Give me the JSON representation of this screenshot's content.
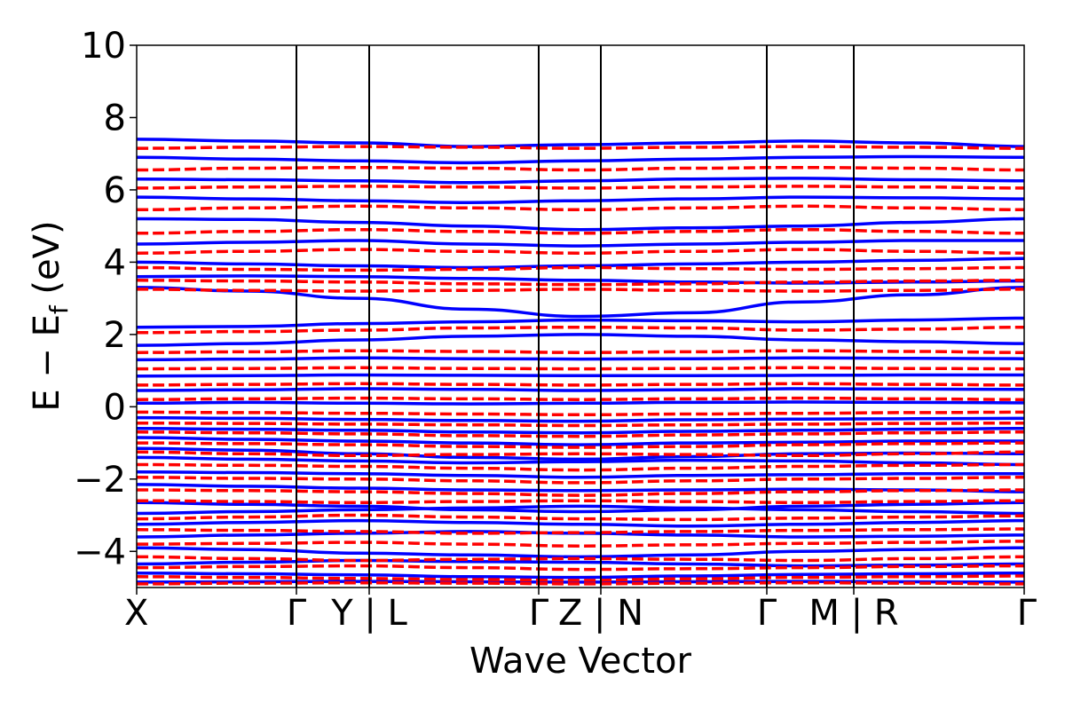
{
  "chart_data": {
    "type": "line",
    "title": "",
    "xlabel": "Wave Vector",
    "ylabel": "E − E",
    "ylabel_sub": "f",
    "ylabel_unit": " (eV)",
    "ylim": [
      -5,
      10
    ],
    "yticks": [
      -4,
      -2,
      0,
      2,
      4,
      6,
      8,
      10
    ],
    "ytick_labels": [
      "−4",
      "−2",
      "0",
      "2",
      "4",
      "6",
      "8",
      "10"
    ],
    "kpath_ticks": [
      {
        "k": 0.0,
        "label": "X"
      },
      {
        "k": 0.18,
        "label": "Γ"
      },
      {
        "k": 0.262,
        "label": "Y | L"
      },
      {
        "k": 0.453,
        "label": "Γ"
      },
      {
        "k": 0.523,
        "label": "Z | N"
      },
      {
        "k": 0.71,
        "label": "Γ"
      },
      {
        "k": 0.808,
        "label": "M | R"
      },
      {
        "k": 1.0,
        "label": "Γ"
      }
    ],
    "colors": {
      "series_a": "#0000ff",
      "series_b": "#ff0000",
      "axis": "#000000"
    },
    "series": [
      {
        "style": "solid",
        "color": "#0000ff",
        "bands": [
          {
            "y": [
              -4.85,
              -4.84,
              -4.83,
              -4.84,
              -4.85,
              -4.84,
              -4.83,
              -4.84,
              -4.85
            ]
          },
          {
            "y": [
              -4.6,
              -4.62,
              -4.65,
              -4.7,
              -4.72,
              -4.68,
              -4.64,
              -4.62,
              -4.6
            ]
          },
          {
            "y": [
              -4.35,
              -4.3,
              -4.25,
              -4.28,
              -4.3,
              -4.35,
              -4.4,
              -4.38,
              -4.35
            ]
          },
          {
            "y": [
              -3.9,
              -3.95,
              -4.05,
              -4.1,
              -4.15,
              -4.1,
              -4.0,
              -3.95,
              -3.9
            ]
          },
          {
            "y": [
              -3.6,
              -3.55,
              -3.5,
              -3.45,
              -3.5,
              -3.55,
              -3.6,
              -3.58,
              -3.55
            ]
          },
          {
            "y": [
              -3.25,
              -3.2,
              -3.15,
              -3.2,
              -3.25,
              -3.3,
              -3.25,
              -3.2,
              -3.15
            ]
          },
          {
            "y": [
              -2.95,
              -2.9,
              -2.85,
              -2.8,
              -2.75,
              -2.8,
              -2.85,
              -2.9,
              -2.95
            ]
          },
          {
            "y": [
              -2.65,
              -2.7,
              -2.75,
              -2.85,
              -2.9,
              -2.85,
              -2.75,
              -2.7,
              -2.65
            ]
          },
          {
            "y": [
              -2.15,
              -2.2,
              -2.25,
              -2.3,
              -2.32,
              -2.3,
              -2.28,
              -2.3,
              -2.35
            ]
          },
          {
            "y": [
              -1.8,
              -1.82,
              -1.85,
              -1.9,
              -1.95,
              -1.9,
              -1.88,
              -1.85,
              -1.85
            ]
          },
          {
            "y": [
              -1.4,
              -1.45,
              -1.5,
              -1.55,
              -1.52,
              -1.48,
              -1.5,
              -1.55,
              -1.6
            ]
          },
          {
            "y": [
              -1.15,
              -1.2,
              -1.3,
              -1.4,
              -1.45,
              -1.38,
              -1.3,
              -1.28,
              -1.3
            ]
          },
          {
            "y": [
              -0.85,
              -0.9,
              -0.95,
              -1.0,
              -1.05,
              -1.0,
              -0.98,
              -0.95,
              -0.95
            ]
          },
          {
            "y": [
              -0.6,
              -0.62,
              -0.65,
              -0.7,
              -0.72,
              -0.68,
              -0.65,
              -0.62,
              -0.6
            ]
          },
          {
            "y": [
              -0.3,
              -0.32,
              -0.35,
              -0.38,
              -0.4,
              -0.36,
              -0.34,
              -0.33,
              -0.32
            ]
          },
          {
            "y": [
              0.1,
              0.12,
              0.1,
              0.08,
              0.1,
              0.12,
              0.13,
              0.12,
              0.11
            ]
          },
          {
            "y": [
              0.45,
              0.47,
              0.5,
              0.48,
              0.45,
              0.47,
              0.5,
              0.49,
              0.48
            ]
          },
          {
            "y": [
              0.85,
              0.86,
              0.88,
              0.87,
              0.86,
              0.86,
              0.87,
              0.88,
              0.88
            ]
          },
          {
            "y": [
              1.3,
              1.32,
              1.35,
              1.33,
              1.32,
              1.33,
              1.35,
              1.34,
              1.33
            ]
          },
          {
            "y": [
              1.7,
              1.75,
              1.85,
              1.95,
              2.0,
              1.95,
              1.85,
              1.8,
              1.75
            ]
          },
          {
            "y": [
              2.2,
              2.22,
              2.3,
              2.35,
              2.4,
              2.38,
              2.35,
              2.4,
              2.45
            ]
          },
          {
            "y": [
              3.3,
              3.2,
              3.0,
              2.7,
              2.5,
              2.6,
              2.9,
              3.1,
              3.3
            ]
          },
          {
            "y": [
              3.6,
              3.62,
              3.6,
              3.55,
              3.5,
              3.45,
              3.42,
              3.45,
              3.48
            ]
          },
          {
            "y": [
              4.0,
              3.95,
              3.9,
              3.85,
              3.9,
              3.95,
              4.0,
              4.05,
              4.1
            ]
          },
          {
            "y": [
              4.5,
              4.55,
              4.6,
              4.5,
              4.45,
              4.5,
              4.55,
              4.6,
              4.6
            ]
          },
          {
            "y": [
              5.2,
              5.18,
              5.1,
              5.0,
              4.9,
              4.95,
              5.0,
              5.1,
              5.2
            ]
          },
          {
            "y": [
              5.8,
              5.75,
              5.7,
              5.65,
              5.7,
              5.75,
              5.8,
              5.78,
              5.75
            ]
          },
          {
            "y": [
              6.3,
              6.28,
              6.25,
              6.2,
              6.25,
              6.3,
              6.32,
              6.28,
              6.25
            ]
          },
          {
            "y": [
              6.9,
              6.85,
              6.8,
              6.75,
              6.8,
              6.85,
              6.9,
              6.92,
              6.9
            ]
          },
          {
            "y": [
              7.4,
              7.35,
              7.3,
              7.2,
              7.25,
              7.3,
              7.35,
              7.3,
              7.2
            ]
          }
        ]
      },
      {
        "style": "dashed",
        "color": "#ff0000",
        "bands": [
          {
            "y": [
              -4.9,
              -4.88,
              -4.87,
              -4.88,
              -4.9,
              -4.88,
              -4.87,
              -4.88,
              -4.9
            ]
          },
          {
            "y": [
              -4.7,
              -4.72,
              -4.75,
              -4.78,
              -4.8,
              -4.76,
              -4.72,
              -4.7,
              -4.68
            ]
          },
          {
            "y": [
              -4.45,
              -4.42,
              -4.4,
              -4.45,
              -4.5,
              -4.48,
              -4.45,
              -4.42,
              -4.4
            ]
          },
          {
            "y": [
              -4.15,
              -4.2,
              -4.25,
              -4.22,
              -4.2,
              -4.22,
              -4.25,
              -4.2,
              -4.15
            ]
          },
          {
            "y": [
              -3.8,
              -3.78,
              -3.75,
              -3.8,
              -3.85,
              -3.82,
              -3.78,
              -3.75,
              -3.72
            ]
          },
          {
            "y": [
              -3.4,
              -3.42,
              -3.45,
              -3.5,
              -3.48,
              -3.45,
              -3.42,
              -3.4,
              -3.38
            ]
          },
          {
            "y": [
              -3.1,
              -3.05,
              -3.0,
              -3.05,
              -3.1,
              -3.12,
              -3.08,
              -3.05,
              -3.02
            ]
          },
          {
            "y": [
              -2.6,
              -2.62,
              -2.65,
              -2.62,
              -2.6,
              -2.62,
              -2.65,
              -2.62,
              -2.6
            ]
          },
          {
            "y": [
              -2.3,
              -2.32,
              -2.35,
              -2.4,
              -2.45,
              -2.4,
              -2.35,
              -2.32,
              -2.3
            ]
          },
          {
            "y": [
              -1.95,
              -1.98,
              -2.0,
              -2.05,
              -2.1,
              -2.05,
              -2.0,
              -1.98,
              -1.95
            ]
          },
          {
            "y": [
              -1.6,
              -1.62,
              -1.65,
              -1.7,
              -1.75,
              -1.7,
              -1.65,
              -1.62,
              -1.6
            ]
          },
          {
            "y": [
              -1.25,
              -1.3,
              -1.35,
              -1.32,
              -1.3,
              -1.32,
              -1.35,
              -1.3,
              -1.25
            ]
          },
          {
            "y": [
              -1.0,
              -1.02,
              -1.05,
              -1.1,
              -1.12,
              -1.1,
              -1.05,
              -1.02,
              -1.0
            ]
          },
          {
            "y": [
              -0.7,
              -0.72,
              -0.75,
              -0.8,
              -0.82,
              -0.78,
              -0.75,
              -0.72,
              -0.7
            ]
          },
          {
            "y": [
              -0.45,
              -0.46,
              -0.48,
              -0.5,
              -0.52,
              -0.5,
              -0.48,
              -0.46,
              -0.45
            ]
          },
          {
            "y": [
              -0.15,
              -0.16,
              -0.18,
              -0.2,
              -0.22,
              -0.2,
              -0.18,
              -0.16,
              -0.15
            ]
          },
          {
            "y": [
              0.2,
              0.22,
              0.24,
              0.22,
              0.2,
              0.22,
              0.24,
              0.22,
              0.2
            ]
          },
          {
            "y": [
              0.6,
              0.62,
              0.64,
              0.62,
              0.6,
              0.62,
              0.64,
              0.62,
              0.6
            ]
          },
          {
            "y": [
              1.05,
              1.06,
              1.08,
              1.06,
              1.05,
              1.06,
              1.08,
              1.06,
              1.05
            ]
          },
          {
            "y": [
              1.5,
              1.52,
              1.55,
              1.53,
              1.5,
              1.52,
              1.55,
              1.53,
              1.5
            ]
          },
          {
            "y": [
              2.05,
              2.08,
              2.12,
              2.18,
              2.2,
              2.18,
              2.12,
              2.15,
              2.2
            ]
          },
          {
            "y": [
              3.25,
              3.22,
              3.2,
              3.22,
              3.25,
              3.22,
              3.2,
              3.22,
              3.25
            ]
          },
          {
            "y": [
              3.5,
              3.48,
              3.45,
              3.4,
              3.38,
              3.4,
              3.45,
              3.48,
              3.5
            ]
          },
          {
            "y": [
              3.85,
              3.8,
              3.78,
              3.8,
              3.85,
              3.82,
              3.8,
              3.82,
              3.85
            ]
          },
          {
            "y": [
              4.25,
              4.3,
              4.35,
              4.3,
              4.25,
              4.3,
              4.35,
              4.3,
              4.25
            ]
          },
          {
            "y": [
              4.8,
              4.85,
              4.9,
              4.85,
              4.8,
              4.85,
              4.9,
              4.85,
              4.8
            ]
          },
          {
            "y": [
              5.45,
              5.5,
              5.55,
              5.5,
              5.45,
              5.5,
              5.55,
              5.5,
              5.45
            ]
          },
          {
            "y": [
              6.05,
              6.08,
              6.1,
              6.08,
              6.05,
              6.08,
              6.1,
              6.08,
              6.05
            ]
          },
          {
            "y": [
              6.55,
              6.6,
              6.62,
              6.6,
              6.55,
              6.6,
              6.62,
              6.6,
              6.55
            ]
          },
          {
            "y": [
              7.15,
              7.18,
              7.2,
              7.18,
              7.15,
              7.18,
              7.2,
              7.18,
              7.15
            ]
          }
        ]
      }
    ]
  }
}
